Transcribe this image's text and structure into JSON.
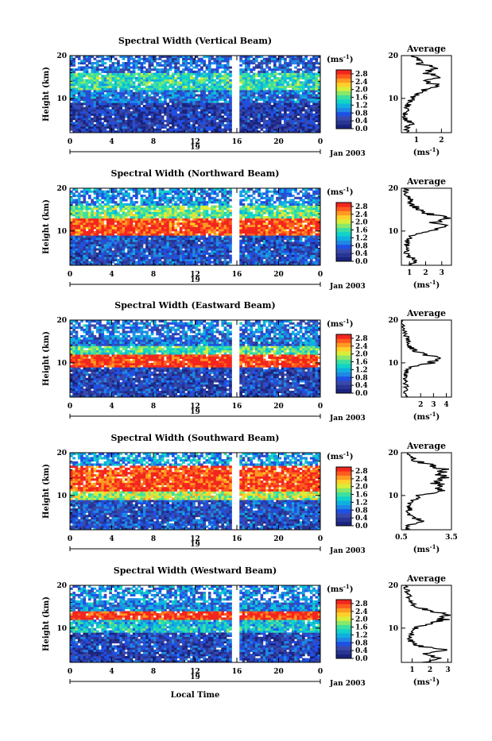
{
  "figure": {
    "xlabel": "Local Time",
    "date_label": "Jan 2003",
    "colorbar_unit_prefix": "(ms",
    "colorbar_unit_sup": "-1",
    "colorbar_unit_suffix": ")",
    "colorbar_ticks": [
      "0.0",
      "0.4",
      "0.8",
      "1.2",
      "1.6",
      "2.0",
      "2.4",
      "2.8"
    ],
    "colorbar_colors": [
      "#1a237e",
      "#283593",
      "#3949ab",
      "#1e50e6",
      "#1e88e5",
      "#0fb0e0",
      "#12d3c8",
      "#3de0a0",
      "#8ae86a",
      "#d9ee3a",
      "#ffd02a",
      "#ff9a22",
      "#ff5a1e",
      "#f2261e"
    ],
    "profile_title": "Average",
    "profile_unit_prefix": "(ms",
    "profile_unit_sup": "-1",
    "profile_unit_suffix": ")"
  },
  "chart_data": [
    {
      "type": "heatmap",
      "title": "Spectral Width (Vertical Beam)",
      "ylabel": "Height (km)",
      "x_ticks": [
        "0",
        "4",
        "8",
        "12",
        "16",
        "20",
        "0"
      ],
      "day_label": "19",
      "y_ticks": [
        "10",
        "20"
      ],
      "xlim": [
        0,
        24
      ],
      "ylim": [
        2,
        20
      ],
      "zlim": [
        0,
        2.8
      ],
      "data_gap_hours": [
        15.5,
        16.2
      ],
      "layers": [
        {
          "height_km": [
            2,
            9
          ],
          "width_ms": 0.4
        },
        {
          "height_km": [
            9,
            12
          ],
          "width_ms": 0.8
        },
        {
          "height_km": [
            12,
            16
          ],
          "width_ms": 1.4
        },
        {
          "height_km": [
            16,
            20
          ],
          "width_ms": 0.7
        }
      ],
      "profile": {
        "x_ticks": [
          "1",
          "2"
        ],
        "xlim": [
          0.4,
          2.4
        ],
        "heights_km": [
          2,
          3,
          4,
          5,
          6,
          7,
          8,
          9,
          10,
          11,
          12,
          13,
          14,
          15,
          16,
          17,
          18,
          19,
          20
        ],
        "values_ms": [
          0.7,
          0.6,
          0.8,
          0.6,
          0.6,
          0.6,
          0.6,
          0.7,
          0.8,
          1.0,
          1.3,
          1.8,
          1.5,
          1.9,
          1.4,
          1.8,
          1.2,
          1.0,
          0.9
        ]
      }
    },
    {
      "type": "heatmap",
      "title": "Spectral Width (Northward Beam)",
      "ylabel": "Height (km)",
      "x_ticks": [
        "0",
        "4",
        "8",
        "12",
        "16",
        "20",
        "0"
      ],
      "day_label": "19",
      "y_ticks": [
        "10",
        "20"
      ],
      "xlim": [
        0,
        24
      ],
      "ylim": [
        2,
        20
      ],
      "zlim": [
        0,
        2.8
      ],
      "data_gap_hours": [
        15.5,
        16.2
      ],
      "layers": [
        {
          "height_km": [
            2,
            9
          ],
          "width_ms": 0.6
        },
        {
          "height_km": [
            9,
            13
          ],
          "width_ms": 2.6
        },
        {
          "height_km": [
            13,
            16
          ],
          "width_ms": 1.6
        },
        {
          "height_km": [
            16,
            20
          ],
          "width_ms": 0.9
        }
      ],
      "profile": {
        "x_ticks": [
          "1",
          "2",
          "3"
        ],
        "xlim": [
          0.5,
          3.6
        ],
        "heights_km": [
          2,
          3,
          4,
          5,
          6,
          7,
          8,
          9,
          10,
          11,
          12,
          13,
          14,
          15,
          16,
          17,
          18,
          19,
          20
        ],
        "values_ms": [
          0.9,
          1.5,
          1.0,
          0.8,
          0.9,
          0.8,
          0.9,
          1.2,
          2.4,
          3.1,
          2.6,
          3.2,
          2.2,
          1.6,
          1.2,
          1.1,
          0.9,
          0.8,
          0.8
        ]
      }
    },
    {
      "type": "heatmap",
      "title": "Spectral Width (Eastward Beam)",
      "ylabel": "Height (km)",
      "x_ticks": [
        "0",
        "4",
        "8",
        "12",
        "16",
        "20",
        "0"
      ],
      "day_label": "19",
      "y_ticks": [
        "10",
        "20"
      ],
      "xlim": [
        0,
        24
      ],
      "ylim": [
        2,
        20
      ],
      "zlim": [
        0,
        2.8
      ],
      "data_gap_hours": [
        15.5,
        16.2
      ],
      "layers": [
        {
          "height_km": [
            2,
            9
          ],
          "width_ms": 0.5
        },
        {
          "height_km": [
            9,
            12
          ],
          "width_ms": 2.7
        },
        {
          "height_km": [
            12,
            14
          ],
          "width_ms": 1.5
        },
        {
          "height_km": [
            14,
            20
          ],
          "width_ms": 0.8
        }
      ],
      "profile": {
        "x_ticks": [
          "2",
          "3",
          "4"
        ],
        "xlim": [
          0.5,
          4.4
        ],
        "heights_km": [
          2,
          3,
          4,
          5,
          6,
          7,
          8,
          9,
          10,
          11,
          12,
          13,
          14,
          15,
          16,
          17,
          18,
          19,
          20
        ],
        "values_ms": [
          0.9,
          0.8,
          0.9,
          0.8,
          0.8,
          0.8,
          0.9,
          1.1,
          2.8,
          3.6,
          2.4,
          1.5,
          1.1,
          1.0,
          0.9,
          0.8,
          0.7,
          0.7,
          0.6
        ]
      }
    },
    {
      "type": "heatmap",
      "title": "Spectral Width (Southward Beam)",
      "ylabel": "Height (km)",
      "x_ticks": [
        "0",
        "4",
        "8",
        "12",
        "16",
        "20",
        "0"
      ],
      "day_label": "19",
      "y_ticks": [
        "10",
        "20"
      ],
      "xlim": [
        0,
        24
      ],
      "ylim": [
        2,
        20
      ],
      "zlim": [
        0,
        2.8
      ],
      "data_gap_hours": [
        15.5,
        16.2
      ],
      "layers": [
        {
          "height_km": [
            2,
            9
          ],
          "width_ms": 0.6
        },
        {
          "height_km": [
            9,
            11
          ],
          "width_ms": 1.8
        },
        {
          "height_km": [
            11,
            17
          ],
          "width_ms": 2.6
        },
        {
          "height_km": [
            17,
            20
          ],
          "width_ms": 1.0
        }
      ],
      "profile": {
        "x_ticks": [
          "0.5",
          "3.5"
        ],
        "xlim": [
          0.5,
          3.5
        ],
        "heights_km": [
          2,
          3,
          4,
          5,
          6,
          7,
          8,
          9,
          10,
          11,
          12,
          13,
          14,
          15,
          16,
          17,
          18,
          19,
          20
        ],
        "values_ms": [
          0.9,
          1.0,
          1.8,
          1.1,
          0.9,
          1.0,
          0.9,
          1.2,
          1.6,
          2.8,
          3.0,
          2.6,
          3.1,
          2.7,
          3.2,
          2.4,
          1.4,
          1.0,
          0.9
        ]
      }
    },
    {
      "type": "heatmap",
      "title": "Spectral Width (Westward Beam)",
      "ylabel": "Height (km)",
      "x_ticks": [
        "0",
        "4",
        "8",
        "12",
        "16",
        "20",
        "0"
      ],
      "day_label": "19",
      "y_ticks": [
        "10",
        "20"
      ],
      "xlim": [
        0,
        24
      ],
      "ylim": [
        2,
        20
      ],
      "zlim": [
        0,
        2.8
      ],
      "data_gap_hours": [
        15.5,
        16.2
      ],
      "layers": [
        {
          "height_km": [
            2,
            9
          ],
          "width_ms": 0.5
        },
        {
          "height_km": [
            9,
            12
          ],
          "width_ms": 1.2
        },
        {
          "height_km": [
            12,
            14
          ],
          "width_ms": 2.7
        },
        {
          "height_km": [
            14,
            20
          ],
          "width_ms": 0.9
        }
      ],
      "profile": {
        "x_ticks": [
          "1",
          "2",
          "3"
        ],
        "xlim": [
          0.4,
          3.2
        ],
        "heights_km": [
          2,
          3,
          4,
          5,
          6,
          7,
          8,
          9,
          10,
          11,
          12,
          13,
          14,
          15,
          16,
          17,
          18,
          19,
          20
        ],
        "values_ms": [
          1.6,
          2.6,
          1.8,
          2.9,
          1.2,
          0.9,
          0.9,
          1.0,
          1.2,
          1.9,
          2.8,
          3.0,
          2.0,
          1.2,
          1.0,
          0.9,
          0.8,
          0.7,
          0.6
        ]
      }
    }
  ]
}
